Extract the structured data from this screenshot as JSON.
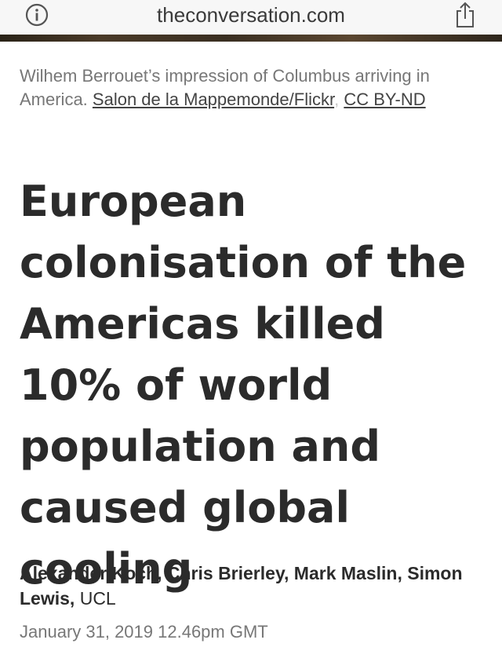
{
  "browser": {
    "url": "theconversation.com",
    "info_icon": "info-icon",
    "share_icon": "share-icon"
  },
  "article": {
    "caption": {
      "text": "Wilhem Berrouet’s impression of Columbus arriving in America.",
      "credit_link": "Salon de la Mappemonde/Flickr",
      "separator": ",",
      "license_link": "CC BY-ND"
    },
    "headline": "European colonisation of the Americas killed 10% of world population and caused global cooling",
    "authors": "Alexander Koch, Chris Brierley, Mark Maslin, Simon Lewis,",
    "affiliation": "UCL",
    "date": "January 31, 2019 12.46pm GMT"
  }
}
